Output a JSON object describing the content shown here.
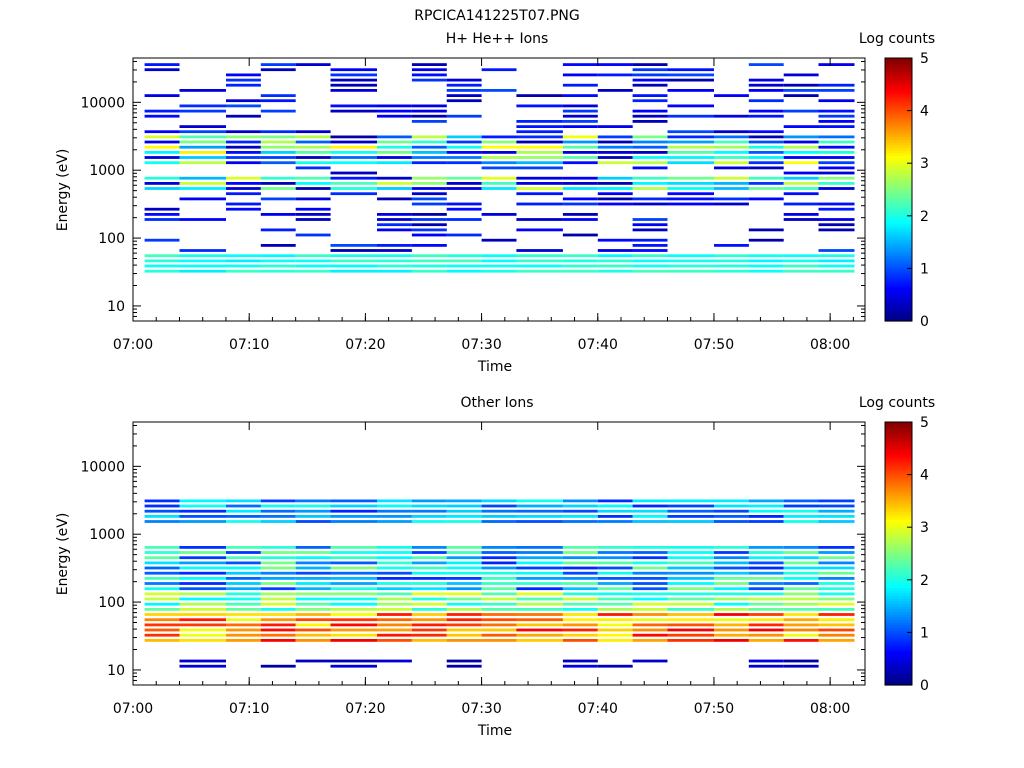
{
  "page_title": "RPCICA141225T07.PNG",
  "colorbar": {
    "label": "Log counts",
    "ticks": [
      "0",
      "1",
      "2",
      "3",
      "4",
      "5"
    ],
    "range": [
      0,
      5
    ],
    "colormap": "jet"
  },
  "chart_data": [
    {
      "type": "heatmap",
      "title": "H+ He++ Ions",
      "xlabel": "Time",
      "ylabel": "Energy (eV)",
      "x_ticks": [
        "07:00",
        "07:10",
        "07:20",
        "07:30",
        "07:40",
        "07:50",
        "08:00"
      ],
      "x_range": [
        "07:00",
        "08:03"
      ],
      "y_scale": "log",
      "y_ticks": [
        "10",
        "100",
        "1000",
        "10000"
      ],
      "y_range": [
        6,
        45000
      ],
      "time_bins_start": [
        "07:01",
        "07:04",
        "07:08",
        "07:11",
        "07:14",
        "07:17",
        "07:21",
        "07:24",
        "07:27",
        "07:30",
        "07:33",
        "07:37",
        "07:40",
        "07:43",
        "07:46",
        "07:50",
        "07:53",
        "07:56",
        "07:59"
      ],
      "value_description": "log10 counts per time/energy bin",
      "approx_profile": [
        {
          "energy_range": [
            30,
            60
          ],
          "log_counts": [
            1.8,
            2.2
          ]
        },
        {
          "energy_range": [
            500,
            800
          ],
          "log_counts": [
            1.5,
            3.0
          ]
        },
        {
          "energy_range": [
            1200,
            3500
          ],
          "log_counts": [
            1.0,
            3.2
          ]
        },
        {
          "energy_range": [
            60,
            40000
          ],
          "log_counts": [
            0.2,
            1.0
          ],
          "note": "sparse"
        }
      ]
    },
    {
      "type": "heatmap",
      "title": "Other Ions",
      "xlabel": "Time",
      "ylabel": "Energy (eV)",
      "x_ticks": [
        "07:00",
        "07:10",
        "07:20",
        "07:30",
        "07:40",
        "07:50",
        "08:00"
      ],
      "x_range": [
        "07:00",
        "08:03"
      ],
      "y_scale": "log",
      "y_ticks": [
        "10",
        "100",
        "1000",
        "10000"
      ],
      "y_range": [
        6,
        45000
      ],
      "time_bins_start": [
        "07:01",
        "07:04",
        "07:08",
        "07:11",
        "07:14",
        "07:17",
        "07:21",
        "07:24",
        "07:27",
        "07:30",
        "07:33",
        "07:37",
        "07:40",
        "07:43",
        "07:46",
        "07:50",
        "07:53",
        "07:56",
        "07:59"
      ],
      "value_description": "log10 counts per time/energy bin",
      "approx_profile": [
        {
          "energy_range": [
            25,
            70
          ],
          "log_counts": [
            3.0,
            4.5
          ]
        },
        {
          "energy_range": [
            70,
            150
          ],
          "log_counts": [
            1.8,
            3.0
          ]
        },
        {
          "energy_range": [
            150,
            700
          ],
          "log_counts": [
            0.8,
            2.5
          ]
        },
        {
          "energy_range": [
            1400,
            3300
          ],
          "log_counts": [
            0.8,
            2.0
          ]
        },
        {
          "energy_range": [
            10,
            15
          ],
          "log_counts": [
            0.2,
            0.5
          ],
          "note": "sparse"
        }
      ]
    }
  ]
}
